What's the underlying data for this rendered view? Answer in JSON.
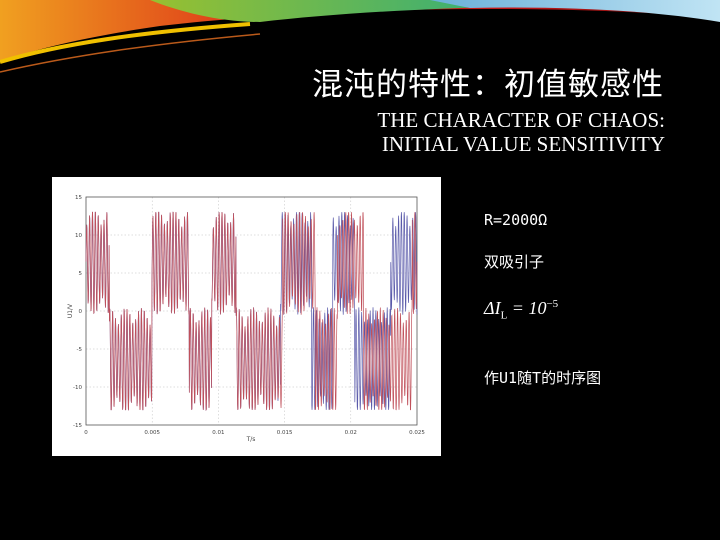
{
  "slide": {
    "title_zh": "混沌的特性：初值敏感性",
    "title_en_line1": "THE CHARACTER OF CHAOS:",
    "title_en_line2": "INITIAL VALUE SENSITIVITY",
    "param_r": "R=2000Ω",
    "attractor_label": "双吸引子",
    "delta_formula": {
      "lhs": "ΔI",
      "sub": "L",
      "rel": " = 10",
      "sup": "−5"
    },
    "plot_caption": "作U1随T的时序图"
  },
  "chart_data": {
    "type": "line",
    "xlabel": "T/s",
    "ylabel": "U1/V",
    "xlim": [
      0,
      0.025
    ],
    "ylim": [
      -15,
      15
    ],
    "x_ticks": [
      "0",
      "0.005",
      "0.01",
      "0.015",
      "0.02",
      "0.025"
    ],
    "y_ticks": [
      "15",
      "10",
      "5",
      "0",
      "-5",
      "-10",
      "-15"
    ],
    "grid": true,
    "series": [
      {
        "color": "#c0505a"
      },
      {
        "color": "#5a5aaa"
      }
    ]
  },
  "colors": {
    "background": "#000000",
    "text": "#ffffff"
  }
}
